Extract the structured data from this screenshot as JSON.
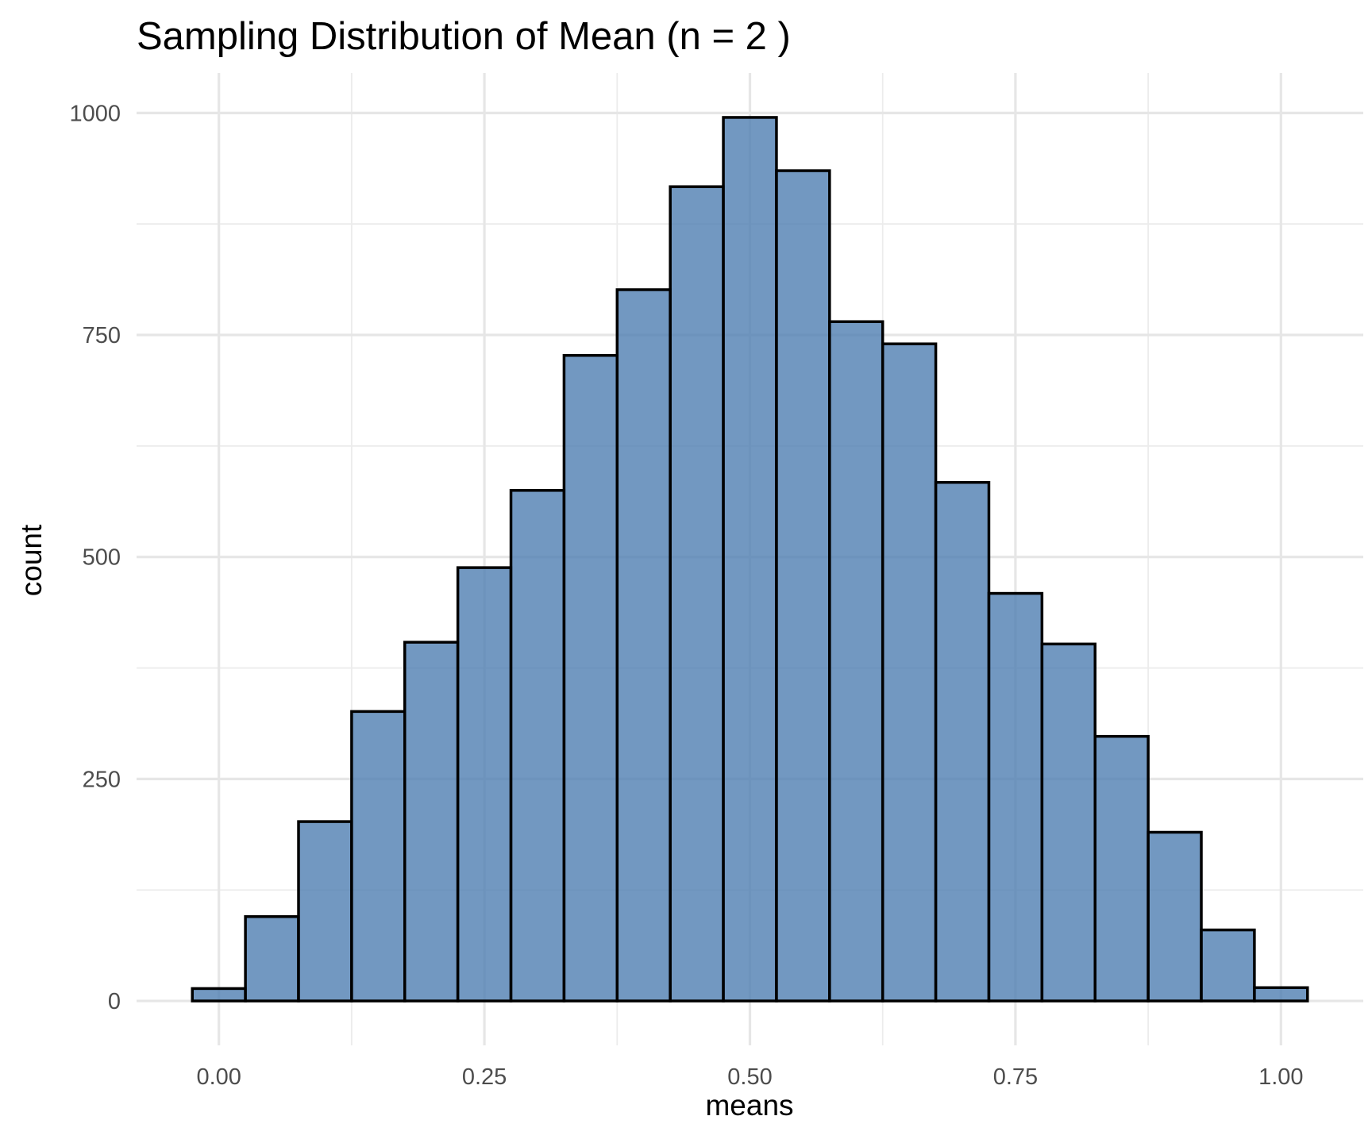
{
  "chart_data": {
    "type": "bar",
    "histogram": true,
    "title": "Sampling Distribution of Mean (n = 2 )",
    "xlabel": "means",
    "ylabel": "count",
    "bin_width": 0.05,
    "x": [
      0.0,
      0.05,
      0.1,
      0.15,
      0.2,
      0.25,
      0.3,
      0.35,
      0.4,
      0.45,
      0.5,
      0.55,
      0.6,
      0.65,
      0.7,
      0.75,
      0.8,
      0.85,
      0.9,
      0.95,
      1.0
    ],
    "values": [
      14,
      95,
      202,
      326,
      404,
      488,
      575,
      727,
      801,
      917,
      995,
      935,
      765,
      740,
      584,
      459,
      402,
      298,
      190,
      80,
      15
    ],
    "xlim": [
      -0.0775,
      1.0775
    ],
    "ylim": [
      -50,
      1045
    ],
    "x_ticks": [
      0.0,
      0.25,
      0.5,
      0.75,
      1.0
    ],
    "x_tick_labels": [
      "0.00",
      "0.25",
      "0.50",
      "0.75",
      "1.00"
    ],
    "y_ticks": [
      0,
      250,
      500,
      750,
      1000
    ],
    "y_tick_labels": [
      "0",
      "250",
      "500",
      "750",
      "1000"
    ],
    "grid": true,
    "legend": "none",
    "colors": {
      "bar_fill": "#4a7bb0",
      "bar_fill_opacity": 0.78,
      "bar_outline": "#000000",
      "grid": "#e6e6e6"
    }
  }
}
